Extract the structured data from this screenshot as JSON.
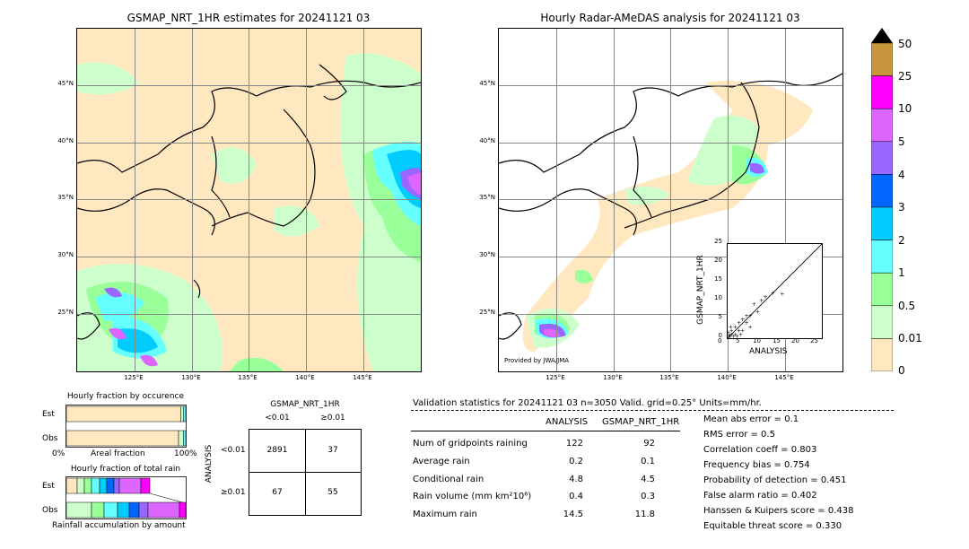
{
  "left_map": {
    "title": "GSMAP_NRT_1HR estimates for 20241121 03",
    "lat_labels": [
      "45°N",
      "40°N",
      "35°N",
      "30°N",
      "25°N"
    ],
    "lon_labels": [
      "125°E",
      "130°E",
      "135°E",
      "140°E",
      "145°E"
    ]
  },
  "right_map": {
    "title": "Hourly Radar-AMeDAS analysis for 20241121 03",
    "lat_labels": [
      "45°N",
      "40°N",
      "35°N",
      "30°N",
      "25°N"
    ],
    "lon_labels": [
      "125°E",
      "130°E",
      "135°E",
      "140°E",
      "145°E"
    ],
    "credit": "Provided by JWA/JMA"
  },
  "colorbar": {
    "labels": [
      "50",
      "25",
      "10",
      "5",
      "4",
      "3",
      "2",
      "1",
      "0.5",
      "0.01",
      "0"
    ],
    "colors": [
      "#c8963c",
      "#ff00ff",
      "#dd66ff",
      "#9966ff",
      "#0066ff",
      "#00ccff",
      "#66ffff",
      "#99ff99",
      "#ccffcc",
      "#ffe8c0"
    ]
  },
  "scatter": {
    "xlabel": "ANALYSIS",
    "ylabel": "GSMAP_NRT_1HR",
    "ticks": [
      "0",
      "5",
      "10",
      "15",
      "20",
      "25"
    ]
  },
  "occurrence": {
    "title": "Hourly fraction by occurence",
    "row_est": "Est",
    "row_obs": "Obs",
    "axis_left": "0%",
    "axis_mid": "Areal fraction",
    "axis_right": "100%"
  },
  "total_rain": {
    "title": "Hourly fraction of total rain",
    "row_est": "Est",
    "row_obs": "Obs",
    "axis_mid": "Rainfall accumulation by amount"
  },
  "contingency": {
    "title": "GSMAP_NRT_1HR",
    "col_lt": "<0.01",
    "col_ge": "≥0.01",
    "row_axis": "ANALYSIS",
    "row_lt": "<0.01",
    "row_ge": "≥0.01",
    "cells": [
      "2891",
      "37",
      "67",
      "55"
    ]
  },
  "validation": {
    "header": "Validation statistics for 20241121 03  n=3050 Valid. grid=0.25° Units=mm/hr.",
    "col_analysis": "ANALYSIS",
    "col_gsmap": "GSMAP_NRT_1HR",
    "rows": [
      {
        "label": "Num of gridpoints raining",
        "analysis": "122",
        "gsmap": "92"
      },
      {
        "label": "Average rain",
        "analysis": "0.2",
        "gsmap": "0.1"
      },
      {
        "label": "Conditional rain",
        "analysis": "4.8",
        "gsmap": "4.5"
      },
      {
        "label": "Rain volume (mm km²10⁶)",
        "analysis": "0.4",
        "gsmap": "0.3"
      },
      {
        "label": "Maximum rain",
        "analysis": "14.5",
        "gsmap": "11.8"
      }
    ],
    "scores": [
      "Mean abs error =    0.1",
      "RMS error =    0.5",
      "Correlation coeff =  0.803",
      "Frequency bias =  0.754",
      "Probability of detection =  0.451",
      "False alarm ratio =  0.402",
      "Hanssen & Kuipers score =  0.438",
      "Equitable threat score =  0.330"
    ]
  },
  "chart_data": [
    {
      "type": "scatter",
      "title": "",
      "xlabel": "ANALYSIS",
      "ylabel": "GSMAP_NRT_1HR",
      "xlim": [
        0,
        25
      ],
      "ylim": [
        0,
        25
      ],
      "points": [
        [
          14.5,
          11.8
        ],
        [
          9,
          10
        ],
        [
          8,
          7
        ],
        [
          7,
          9
        ],
        [
          6,
          6
        ],
        [
          5,
          4
        ],
        [
          4,
          5
        ],
        [
          3,
          2
        ],
        [
          2,
          3
        ],
        [
          1,
          1
        ],
        [
          0.5,
          0.3
        ],
        [
          0.3,
          0.8
        ],
        [
          1.5,
          0.5
        ],
        [
          2,
          1
        ],
        [
          3,
          4
        ],
        [
          4,
          2
        ],
        [
          5,
          6
        ],
        [
          6,
          3
        ],
        [
          10,
          11
        ],
        [
          12,
          12
        ],
        [
          0.2,
          1.5
        ],
        [
          1,
          2
        ],
        [
          2.5,
          0.5
        ],
        [
          3.5,
          1
        ],
        [
          0.8,
          3
        ]
      ]
    },
    {
      "type": "bar",
      "title": "Hourly fraction by occurence",
      "categories": [
        "Est",
        "Obs"
      ],
      "series": [
        {
          "values": [
            0.96,
            0.94
          ]
        },
        {
          "values": [
            0.02,
            0.04
          ]
        },
        {
          "values": [
            0.02,
            0.02
          ]
        }
      ]
    },
    {
      "type": "table",
      "title": "GSMAP_NRT_1HR",
      "rows": [
        [
          "2891",
          "37"
        ],
        [
          "67",
          "55"
        ]
      ]
    }
  ]
}
